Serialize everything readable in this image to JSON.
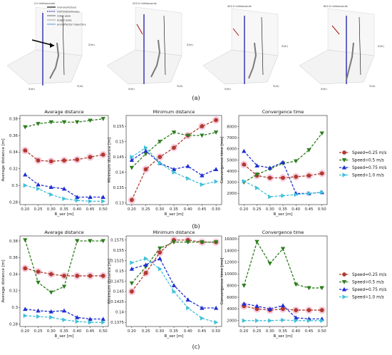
{
  "figure": {
    "panel_labels": [
      "(a)",
      "(b)",
      "(c)"
    ]
  },
  "scene_3d": {
    "snapshot_titles": [
      "2.0 milliseconds",
      "202.0 milliseconds",
      "402.0 milliseconds",
      "602.0 milliseconds"
    ],
    "legend": [
      "Human(Actual)",
      "Human(Estimate)",
      "robot pose",
      "target pose",
      "end-effector trajectory"
    ],
    "axis_labels": {
      "x": "X(m)",
      "y": "Y(m)",
      "z": "Z(m)"
    }
  },
  "colors": {
    "speed_0_25": "#b03a2e",
    "speed_0_5": "#2e7d1e",
    "speed_0_75": "#1f2fd0",
    "speed_1_0": "#3fc0d8",
    "highlight": "#f4b6d2",
    "human_actual": "#000000",
    "human_estimate": "#1a1aa8"
  },
  "legend_entries": [
    "Speed=0.25 m/s",
    "Speed=0.5 m/s",
    "Speed=0.75 m/s",
    "Speed=1.0 m/s"
  ],
  "chart_data": [
    {
      "id": "b1",
      "type": "line",
      "title": "Average distance",
      "xlabel": "R_ser [m]",
      "ylabel": "Average distance [m]",
      "x": [
        0.2,
        0.25,
        0.3,
        0.35,
        0.4,
        0.45,
        0.5
      ],
      "xlim": [
        0.18,
        0.52
      ],
      "ylim": [
        0.277,
        0.384
      ],
      "yticks": [
        0.28,
        0.3,
        0.32,
        0.34,
        0.36,
        0.38
      ],
      "series": [
        {
          "name": "Speed=0.25 m/s",
          "values": [
            0.342,
            0.33,
            0.329,
            0.33,
            0.331,
            0.334,
            0.337
          ]
        },
        {
          "name": "Speed=0.5 m/s",
          "values": [
            0.37,
            0.374,
            0.376,
            0.376,
            0.376,
            0.378,
            0.38
          ]
        },
        {
          "name": "Speed=0.75 m/s",
          "values": [
            0.313,
            0.301,
            0.298,
            0.296,
            0.286,
            0.286,
            0.286
          ]
        },
        {
          "name": "Speed=1.0 m/s",
          "values": [
            0.3,
            0.296,
            0.289,
            0.284,
            0.282,
            0.281,
            0.281
          ]
        }
      ]
    },
    {
      "id": "b2",
      "type": "line",
      "title": "Minimum distance",
      "xlabel": "R_ser [m]",
      "ylabel": "Minimum distance [m]",
      "x": [
        0.2,
        0.25,
        0.3,
        0.35,
        0.4,
        0.45,
        0.5
      ],
      "xlim": [
        0.18,
        0.52
      ],
      "ylim": [
        0.1295,
        0.1585
      ],
      "yticks": [
        0.13,
        0.135,
        0.14,
        0.145,
        0.15,
        0.155
      ],
      "series": [
        {
          "name": "Speed=0.25 m/s",
          "values": [
            0.131,
            0.141,
            0.145,
            0.148,
            0.152,
            0.155,
            0.157
          ]
        },
        {
          "name": "Speed=0.5 m/s",
          "values": [
            0.1415,
            0.146,
            0.15,
            0.153,
            0.152,
            0.152,
            0.153
          ]
        },
        {
          "name": "Speed=0.75 m/s",
          "values": [
            0.144,
            0.147,
            0.143,
            0.141,
            0.142,
            0.139,
            0.141
          ]
        },
        {
          "name": "Speed=1.0 m/s",
          "values": [
            0.145,
            0.148,
            0.143,
            0.14,
            0.138,
            0.136,
            0.137
          ]
        }
      ]
    },
    {
      "id": "b3",
      "type": "line",
      "title": "Convergence time",
      "xlabel": "R_ser [m]",
      "ylabel": "Convergence time [ms]",
      "x": [
        0.2,
        0.25,
        0.3,
        0.35,
        0.4,
        0.45,
        0.5
      ],
      "xlim": [
        0.18,
        0.52
      ],
      "ylim": [
        1000,
        9000
      ],
      "yticks": [
        2000,
        3000,
        4000,
        5000,
        6000,
        7000,
        8000
      ],
      "series": [
        {
          "name": "Speed=0.25 m/s",
          "values": [
            4600,
            3600,
            3400,
            3400,
            3500,
            3600,
            3800
          ]
        },
        {
          "name": "Speed=0.5 m/s",
          "values": [
            3000,
            3700,
            4200,
            4700,
            4900,
            5900,
            7400
          ]
        },
        {
          "name": "Speed=0.75 m/s",
          "values": [
            5800,
            4500,
            4300,
            4800,
            2000,
            2000,
            2100
          ]
        },
        {
          "name": "Speed=1.0 m/s",
          "values": [
            3100,
            2500,
            1700,
            1800,
            1900,
            2000,
            2100
          ]
        }
      ]
    },
    {
      "id": "c1",
      "type": "line",
      "title": "Average distance",
      "xlabel": "R_ser [m]",
      "ylabel": "Average distance [m]",
      "x": [
        0.2,
        0.25,
        0.3,
        0.35,
        0.4,
        0.45,
        0.5
      ],
      "xlim": [
        0.18,
        0.52
      ],
      "ylim": [
        0.277,
        0.386
      ],
      "yticks": [
        0.28,
        0.3,
        0.32,
        0.34,
        0.36,
        0.38
      ],
      "series": [
        {
          "name": "Speed=0.25 m/s",
          "values": [
            0.347,
            0.343,
            0.34,
            0.338,
            0.338,
            0.338,
            0.338
          ]
        },
        {
          "name": "Speed=0.5 m/s",
          "values": [
            0.381,
            0.33,
            0.318,
            0.325,
            0.38,
            0.38,
            0.38
          ]
        },
        {
          "name": "Speed=0.75 m/s",
          "values": [
            0.298,
            0.296,
            0.295,
            0.296,
            0.288,
            0.286,
            0.286
          ]
        },
        {
          "name": "Speed=1.0 m/s",
          "values": [
            0.29,
            0.289,
            0.288,
            0.285,
            0.283,
            0.282,
            0.282
          ]
        }
      ]
    },
    {
      "id": "c2",
      "type": "line",
      "title": "Minimum distance",
      "xlabel": "R_ser [m]",
      "ylabel": "Minimum distance [m]",
      "x": [
        0.2,
        0.25,
        0.3,
        0.35,
        0.4,
        0.45,
        0.5
      ],
      "xlim": [
        0.18,
        0.52
      ],
      "ylim": [
        0.1365,
        0.1585
      ],
      "yticks": [
        0.1375,
        0.14,
        0.1425,
        0.145,
        0.1475,
        0.15,
        0.1525,
        0.155,
        0.1575
      ],
      "series": [
        {
          "name": "Speed=0.25 m/s",
          "values": [
            0.145,
            0.1495,
            0.1545,
            0.1575,
            0.1575,
            0.157,
            0.157
          ]
        },
        {
          "name": "Speed=0.5 m/s",
          "values": [
            0.147,
            0.151,
            0.1555,
            0.157,
            0.157,
            0.157,
            0.157
          ]
        },
        {
          "name": "Speed=0.75 m/s",
          "values": [
            0.1505,
            0.1515,
            0.153,
            0.1465,
            0.143,
            0.141,
            0.141
          ]
        },
        {
          "name": "Speed=1.0 m/s",
          "values": [
            0.152,
            0.153,
            0.1505,
            0.145,
            0.141,
            0.1385,
            0.1375
          ]
        }
      ]
    },
    {
      "id": "c3",
      "type": "line",
      "title": "Convergence time",
      "xlabel": "R_ser [m]",
      "ylabel": "Convergence time [ms]",
      "x": [
        0.2,
        0.25,
        0.3,
        0.35,
        0.4,
        0.45,
        0.5
      ],
      "xlim": [
        0.18,
        0.52
      ],
      "ylim": [
        1000,
        16500
      ],
      "yticks": [
        2000,
        4000,
        6000,
        8000,
        10000,
        12000,
        14000,
        16000
      ],
      "series": [
        {
          "name": "Speed=0.25 m/s",
          "values": [
            4500,
            4000,
            3800,
            4000,
            3800,
            3800,
            3800
          ]
        },
        {
          "name": "Speed=0.5 m/s",
          "values": [
            8000,
            15500,
            11800,
            14300,
            8200,
            7600,
            7600
          ]
        },
        {
          "name": "Speed=0.75 m/s",
          "values": [
            4900,
            4500,
            4000,
            4600,
            2500,
            2300,
            2300
          ]
        },
        {
          "name": "Speed=1.0 m/s",
          "values": [
            2000,
            2000,
            2000,
            2100,
            2000,
            2000,
            2000
          ]
        }
      ]
    }
  ]
}
